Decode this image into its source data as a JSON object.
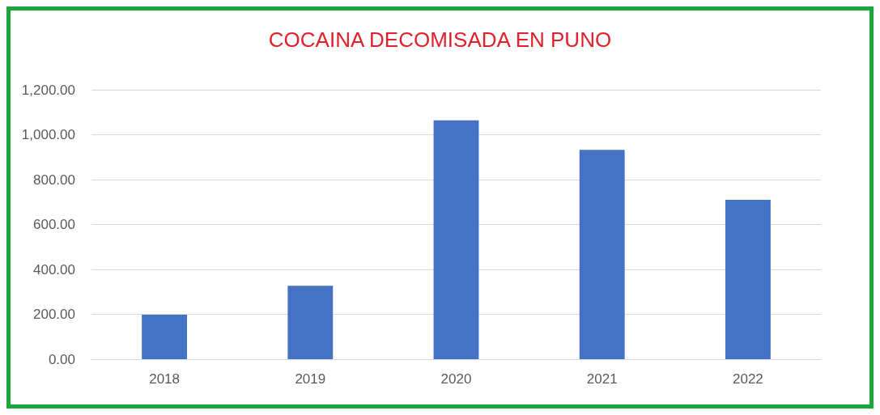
{
  "chart_data": {
    "type": "bar",
    "title": "COCAINA DECOMISADA EN PUNO",
    "categories": [
      "2018",
      "2019",
      "2020",
      "2021",
      "2022"
    ],
    "values": [
      198,
      327,
      1064,
      932,
      710
    ],
    "color": "#4472c4",
    "ylim": [
      0,
      1200
    ],
    "yticks": [
      {
        "value": 0,
        "label": "0.00"
      },
      {
        "value": 200,
        "label": "200.00"
      },
      {
        "value": 400,
        "label": "400.00"
      },
      {
        "value": 600,
        "label": "600.00"
      },
      {
        "value": 800,
        "label": "800.00"
      },
      {
        "value": 1000,
        "label": "1,000.00"
      },
      {
        "value": 1200,
        "label": "1,200.00"
      }
    ],
    "grid": "y"
  }
}
